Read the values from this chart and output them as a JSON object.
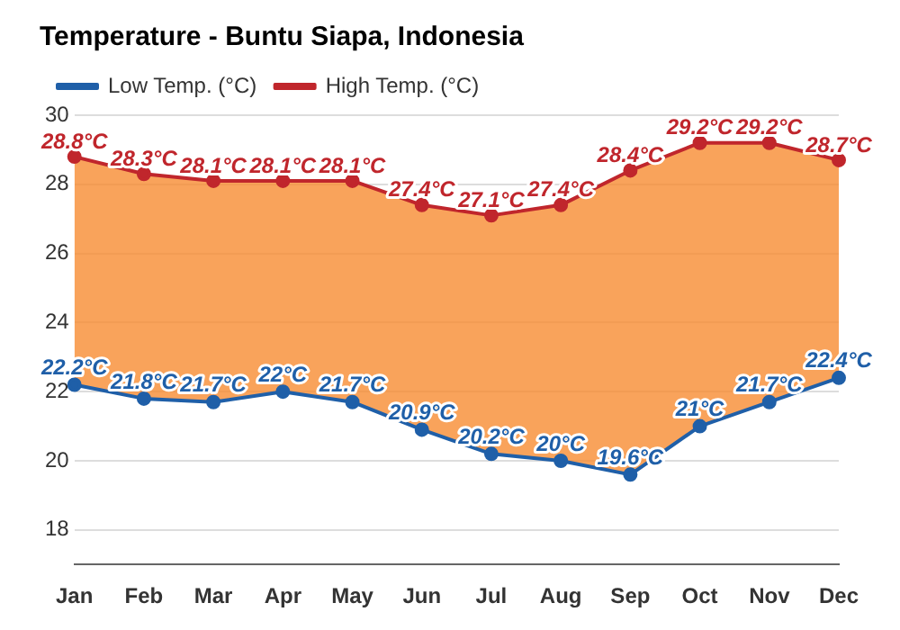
{
  "chart_data": {
    "type": "line",
    "title": "Temperature - Buntu Siapa, Indonesia",
    "categories": [
      "Jan",
      "Feb",
      "Mar",
      "Apr",
      "May",
      "Jun",
      "Jul",
      "Aug",
      "Sep",
      "Oct",
      "Nov",
      "Dec"
    ],
    "series": [
      {
        "name": "Low Temp. (°C)",
        "color": "#1f5fa8",
        "values": [
          22.2,
          21.8,
          21.7,
          22,
          21.7,
          20.9,
          20.2,
          20,
          19.6,
          21,
          21.7,
          22.4
        ],
        "value_labels": [
          "22.2°C",
          "21.8°C",
          "21.7°C",
          "22°C",
          "21.7°C",
          "20.9°C",
          "20.2°C",
          "20°C",
          "19.6°C",
          "21°C",
          "21.7°C",
          "22.4°C"
        ]
      },
      {
        "name": "High Temp. (°C)",
        "type": "area",
        "color": "#c0262c",
        "values": [
          28.8,
          28.3,
          28.1,
          28.1,
          28.1,
          27.4,
          27.1,
          27.4,
          28.4,
          29.2,
          29.2,
          28.7
        ],
        "value_labels": [
          "28.8°C",
          "28.3°C",
          "28.1°C",
          "28.1°C",
          "28.1°C",
          "27.4°C",
          "27.1°C",
          "27.4°C",
          "28.4°C",
          "29.2°C",
          "29.2°C",
          "28.7°C"
        ]
      }
    ],
    "ylim": [
      17,
      30
    ],
    "yticks": [
      18,
      20,
      22,
      24,
      26,
      28,
      30
    ],
    "grid": "y",
    "legend": "top left",
    "marker": "circle",
    "line_style": "solid"
  }
}
